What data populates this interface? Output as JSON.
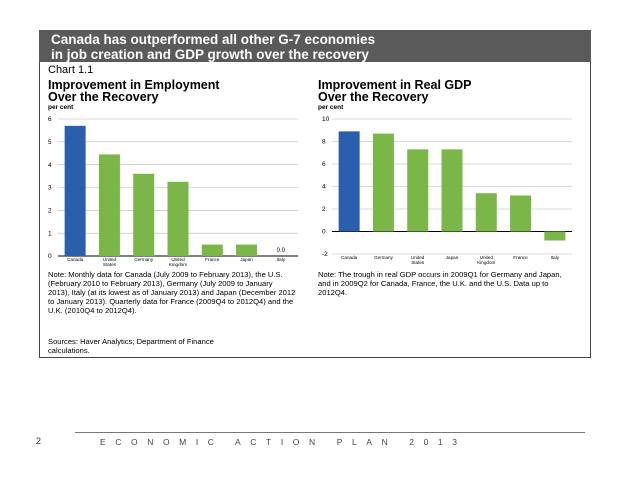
{
  "banner": {
    "line1": "Canada has outperformed all other G-7 economies",
    "line2": "in job creation and GDP growth over the recovery"
  },
  "chart_label": "Chart 1.1",
  "footer": {
    "page_number": "2",
    "text": "ECONOMIC ACTION PLAN 2013"
  },
  "colors": {
    "canada": "#2a5fae",
    "others": "#7ab648",
    "banner": "#5a5a5a"
  },
  "chart_data": [
    {
      "type": "bar",
      "title_line1": "Improvement in Employment",
      "title_line2": "Over the Recovery",
      "ylabel": "per cent",
      "ylim": [
        0,
        6
      ],
      "yticks": [
        0,
        1,
        2,
        3,
        4,
        5,
        6
      ],
      "categories": [
        [
          "Canada"
        ],
        [
          "United",
          "States"
        ],
        [
          "Germany"
        ],
        [
          "United",
          "Kingdom"
        ],
        [
          "France"
        ],
        [
          "Japan"
        ],
        [
          "Italy"
        ]
      ],
      "values": [
        5.7,
        4.45,
        3.6,
        3.25,
        0.5,
        0.5,
        0.0
      ],
      "data_labels": [
        "",
        "",
        "",
        "",
        "",
        "",
        "0.0"
      ],
      "note": "Note: Monthly data for Canada (July 2009 to February 2013), the U.S. (February 2010 to February 2013), Germany (July 2009 to January 2013), Italy (at its lowest as of January 2013) and Japan (December 2012 to January 2013). Quarterly data for France (2009Q4 to 2012Q4) and the U.K. (2010Q4 to 2012Q4).",
      "sources": "Sources: Haver Analytics; Department of Finance calculations."
    },
    {
      "type": "bar",
      "title_line1": "Improvement in Real GDP",
      "title_line2": "Over the Recovery",
      "ylabel": "per cent",
      "ylim": [
        -2,
        10
      ],
      "yticks": [
        -2,
        0,
        2,
        4,
        6,
        8,
        10
      ],
      "categories": [
        [
          "Canada"
        ],
        [
          "Germany"
        ],
        [
          "United",
          "States"
        ],
        [
          "Japan"
        ],
        [
          "United",
          "Kingdom"
        ],
        [
          "France"
        ],
        [
          "Italy"
        ]
      ],
      "values": [
        8.9,
        8.7,
        7.3,
        7.3,
        3.4,
        3.2,
        -0.8
      ],
      "data_labels": [
        "",
        "",
        "",
        "",
        "",
        "",
        ""
      ],
      "note": "Note: The trough in real GDP occurs in 2009Q1 for Germany and Japan, and in 2009Q2 for Canada, France, the U.K. and the U.S. Data up to 2012Q4."
    }
  ]
}
